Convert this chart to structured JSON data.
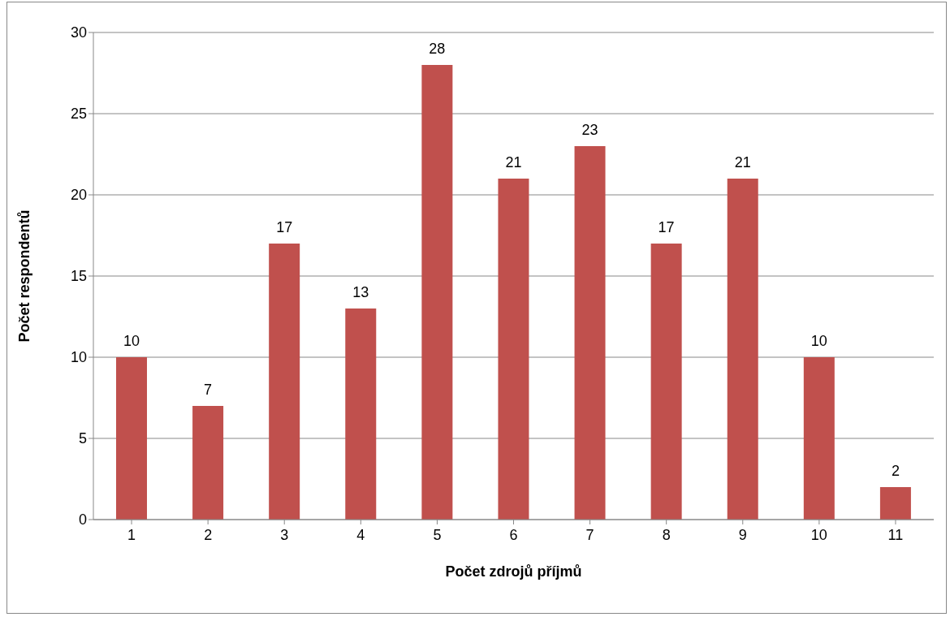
{
  "chart_data": {
    "type": "bar",
    "xlabel": "Počet zdrojů příjmů",
    "ylabel": "Počet respondentů",
    "categories": [
      "1",
      "2",
      "3",
      "4",
      "5",
      "6",
      "7",
      "8",
      "9",
      "10",
      "11"
    ],
    "values": [
      10,
      7,
      17,
      13,
      28,
      21,
      23,
      17,
      21,
      10,
      2
    ],
    "color": "#c0504d",
    "ylim": [
      0,
      30
    ],
    "yticks": [
      0,
      5,
      10,
      15,
      20,
      25,
      30
    ],
    "grid": "y",
    "data_labels": true
  }
}
